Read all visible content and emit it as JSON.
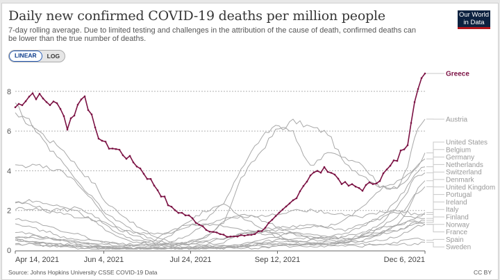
{
  "header": {
    "title": "Daily new confirmed COVID-19 deaths per million people",
    "subtitle": "7-day rolling average. Due to limited testing and challenges in the attribution of the cause of death, confirmed deaths can be lower than the true number of deaths.",
    "logo_line1": "Our World",
    "logo_line2": "in Data"
  },
  "controls": {
    "linear_label": "LINEAR",
    "log_label": "LOG",
    "selected": "LINEAR"
  },
  "footer": {
    "source": "Source: Johns Hopkins University CSSE COVID-19 Data",
    "license": "CC BY"
  },
  "colors": {
    "highlight": "#7b1143",
    "others": "#a8a8a8",
    "grid": "#b0b0b0"
  },
  "chart_data": {
    "type": "line",
    "title": "Daily new confirmed COVID-19 deaths per million people",
    "xlabel": "",
    "ylabel": "",
    "x_start": "2021-04-14",
    "x_end": "2021-12-06",
    "x_ticks": [
      {
        "day": 0,
        "label": "Apr 14, 2021"
      },
      {
        "day": 51,
        "label": "Jun 4, 2021"
      },
      {
        "day": 101,
        "label": "Jul 24, 2021"
      },
      {
        "day": 151,
        "label": "Sep 12, 2021"
      },
      {
        "day": 236,
        "label": "Dec 6, 2021"
      }
    ],
    "y_ticks": [
      0,
      2,
      4,
      6,
      8
    ],
    "ylim": [
      0,
      8.6
    ],
    "grid": "horizontal-dashed",
    "legend": "right-end-labels",
    "series_x_days": [
      0,
      10,
      20,
      26,
      30,
      36,
      40,
      46,
      52,
      60,
      70,
      80,
      90,
      100,
      110,
      120,
      130,
      140,
      150,
      160,
      170,
      180,
      190,
      200,
      210,
      220,
      226,
      230,
      236
    ],
    "series": [
      {
        "name": "Greece",
        "highlight": true,
        "values": [
          7.2,
          7.9,
          7.4,
          7.3,
          6.2,
          7.3,
          7.9,
          6.0,
          5.3,
          5.0,
          4.3,
          3.3,
          2.1,
          1.7,
          1.1,
          0.7,
          0.7,
          0.9,
          1.6,
          2.5,
          3.8,
          4.1,
          3.3,
          3.1,
          3.6,
          4.6,
          5.5,
          7.7,
          8.9
        ]
      },
      {
        "name": "Austria",
        "values": [
          7.3,
          6.3,
          5.5,
          5.2,
          4.8,
          4.2,
          3.8,
          3.3,
          2.4,
          1.9,
          1.2,
          0.7,
          0.4,
          0.3,
          0.6,
          1.4,
          3.6,
          4.8,
          6.0,
          6.5,
          6.2,
          5.9,
          4.3,
          3.8,
          3.2,
          3.1,
          4.3,
          5.7,
          6.6
        ]
      },
      {
        "name": "United States",
        "values": [
          2.1,
          2.1,
          2.0,
          1.9,
          1.8,
          1.6,
          1.7,
          1.5,
          1.4,
          1.0,
          0.9,
          0.8,
          0.9,
          1.2,
          1.6,
          2.4,
          4.0,
          5.5,
          6.3,
          5.9,
          4.2,
          5.0,
          4.6,
          4.3,
          3.2,
          3.1,
          3.6,
          4.0,
          4.9
        ]
      },
      {
        "name": "Belgium",
        "values": [
          2.4,
          2.3,
          1.9,
          2.1,
          2.0,
          2.2,
          2.0,
          1.7,
          1.3,
          0.8,
          0.5,
          0.3,
          0.3,
          0.4,
          0.5,
          0.6,
          0.8,
          0.9,
          1.0,
          1.1,
          1.2,
          1.2,
          1.5,
          2.2,
          3.0,
          3.5,
          3.8,
          4.2,
          4.6
        ]
      },
      {
        "name": "Germany",
        "values": [
          2.4,
          2.5,
          2.3,
          2.2,
          2.1,
          2.0,
          1.7,
          1.5,
          1.0,
          0.6,
          0.4,
          0.3,
          0.2,
          0.2,
          0.2,
          0.2,
          0.3,
          0.4,
          0.5,
          0.6,
          0.6,
          0.7,
          0.8,
          1.2,
          1.7,
          2.5,
          3.2,
          3.8,
          4.2
        ]
      },
      {
        "name": "Netherlands",
        "values": [
          0.6,
          0.7,
          0.6,
          0.5,
          0.5,
          0.4,
          0.4,
          0.3,
          0.2,
          0.1,
          0.1,
          0.1,
          0.1,
          0.1,
          0.2,
          0.2,
          0.2,
          0.3,
          0.3,
          0.3,
          0.3,
          0.3,
          0.4,
          0.8,
          1.3,
          2.2,
          3.0,
          3.6,
          3.9
        ]
      },
      {
        "name": "Switzerland",
        "values": [
          0.7,
          0.6,
          0.6,
          0.5,
          0.5,
          0.4,
          0.4,
          0.3,
          0.3,
          0.2,
          0.1,
          0.1,
          0.1,
          0.1,
          0.1,
          0.2,
          0.3,
          0.5,
          0.7,
          0.9,
          0.8,
          0.7,
          0.6,
          0.6,
          0.8,
          1.3,
          2.0,
          2.8,
          3.5
        ]
      },
      {
        "name": "Denmark",
        "values": [
          0.3,
          0.3,
          0.2,
          0.2,
          0.2,
          0.2,
          0.1,
          0.1,
          0.1,
          0.1,
          0.1,
          0.1,
          0.1,
          0.1,
          0.1,
          0.1,
          0.2,
          0.3,
          0.3,
          0.3,
          0.3,
          0.3,
          0.4,
          0.7,
          1.1,
          1.7,
          2.2,
          2.8,
          3.2
        ]
      },
      {
        "name": "United Kingdom",
        "values": [
          0.6,
          0.4,
          0.3,
          0.2,
          0.2,
          0.1,
          0.1,
          0.1,
          0.1,
          0.1,
          0.1,
          0.2,
          0.4,
          0.8,
          1.3,
          1.6,
          1.7,
          1.7,
          1.8,
          2.0,
          2.0,
          1.9,
          1.8,
          1.7,
          1.9,
          2.0,
          1.9,
          1.8,
          1.8
        ]
      },
      {
        "name": "Portugal",
        "values": [
          0.5,
          0.4,
          0.3,
          0.3,
          0.3,
          0.3,
          0.2,
          0.2,
          0.2,
          0.2,
          0.3,
          0.5,
          1.0,
          1.3,
          1.3,
          1.2,
          1.0,
          0.9,
          0.7,
          0.4,
          0.3,
          0.3,
          0.4,
          0.5,
          0.8,
          1.3,
          1.5,
          1.6,
          1.9
        ]
      },
      {
        "name": "Ireland",
        "values": [
          1.4,
          1.1,
          0.9,
          0.7,
          0.6,
          0.5,
          0.5,
          0.5,
          0.4,
          0.3,
          0.3,
          0.2,
          0.2,
          0.3,
          0.4,
          0.6,
          0.8,
          1.0,
          1.1,
          1.2,
          1.3,
          1.1,
          1.0,
          1.3,
          1.6,
          1.9,
          1.7,
          1.6,
          1.6
        ]
      },
      {
        "name": "Italy",
        "values": [
          7.0,
          6.2,
          5.1,
          4.6,
          4.1,
          3.5,
          3.0,
          2.5,
          1.9,
          1.4,
          0.9,
          0.5,
          0.3,
          0.3,
          0.3,
          0.4,
          0.8,
          0.9,
          0.9,
          0.8,
          0.7,
          0.6,
          0.6,
          0.7,
          0.8,
          1.0,
          1.2,
          1.4,
          1.5
        ]
      },
      {
        "name": "Finland",
        "values": [
          0.5,
          0.4,
          0.4,
          0.3,
          0.3,
          0.2,
          0.2,
          0.2,
          0.1,
          0.1,
          0.1,
          0.1,
          0.1,
          0.1,
          0.1,
          0.1,
          0.2,
          0.3,
          0.4,
          0.4,
          0.5,
          0.5,
          0.7,
          0.9,
          1.1,
          1.3,
          1.4,
          1.5,
          1.4
        ]
      },
      {
        "name": "Norway",
        "values": [
          0.3,
          0.3,
          0.2,
          0.2,
          0.2,
          0.2,
          0.2,
          0.1,
          0.1,
          0.1,
          0.1,
          0.1,
          0.1,
          0.1,
          0.1,
          0.1,
          0.1,
          0.1,
          0.2,
          0.3,
          0.3,
          0.4,
          0.5,
          0.7,
          0.9,
          1.0,
          1.2,
          1.4,
          1.3
        ]
      },
      {
        "name": "France",
        "values": [
          4.2,
          4.3,
          4.1,
          4.0,
          3.8,
          3.3,
          2.9,
          2.4,
          1.6,
          1.1,
          0.7,
          0.4,
          0.3,
          0.4,
          0.7,
          1.4,
          1.8,
          1.6,
          1.2,
          0.9,
          0.6,
          0.5,
          0.4,
          0.4,
          0.5,
          0.7,
          0.9,
          1.2,
          1.3
        ]
      },
      {
        "name": "Spain",
        "values": [
          1.6,
          1.4,
          1.2,
          1.0,
          0.9,
          0.8,
          0.7,
          0.5,
          0.4,
          0.3,
          0.2,
          0.3,
          0.8,
          1.5,
          2.0,
          2.3,
          1.7,
          1.2,
          0.8,
          0.5,
          0.4,
          0.3,
          0.3,
          0.3,
          0.3,
          0.4,
          0.5,
          0.6,
          0.5
        ]
      },
      {
        "name": "Sweden",
        "values": [
          0.9,
          0.8,
          0.6,
          0.5,
          0.4,
          0.3,
          0.3,
          0.2,
          0.1,
          0.1,
          0.1,
          0.1,
          0.1,
          0.1,
          0.1,
          0.1,
          0.2,
          0.2,
          0.2,
          0.2,
          0.2,
          0.2,
          0.2,
          0.2,
          0.3,
          0.3,
          0.3,
          0.3,
          0.4
        ]
      }
    ],
    "end_label_order": [
      "United States",
      "Belgium",
      "Germany",
      "Netherlands",
      "Switzerland",
      "Denmark",
      "United Kingdom",
      "Portugal",
      "Ireland",
      "Italy",
      "Finland",
      "Norway",
      "France",
      "Spain",
      "Sweden"
    ]
  }
}
